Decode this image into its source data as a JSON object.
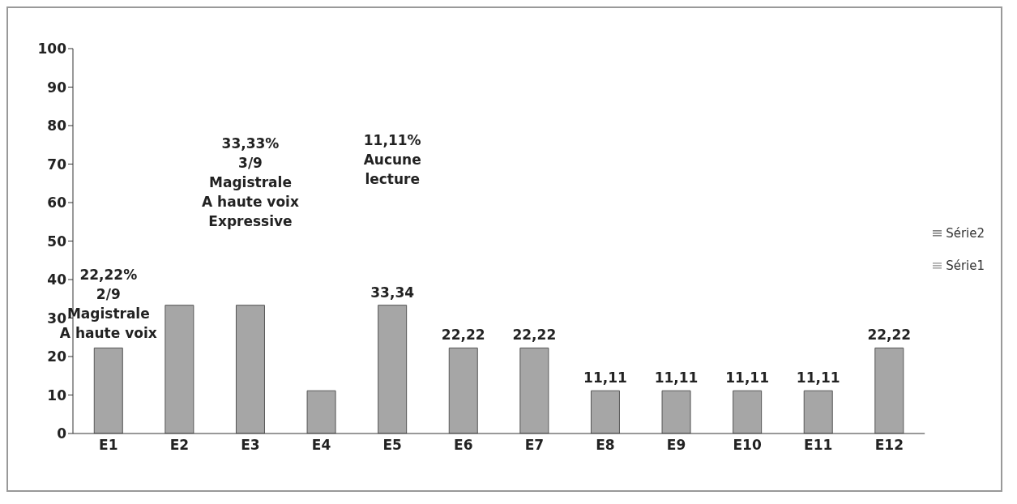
{
  "chart_data": {
    "type": "bar",
    "categories": [
      "E1",
      "E2",
      "E3",
      "E4",
      "E5",
      "E6",
      "E7",
      "E8",
      "E9",
      "E10",
      "E11",
      "E12"
    ],
    "series": [
      {
        "name": "Série1",
        "color": "#a6a6a6",
        "values": [
          22.22,
          33.33,
          33.33,
          11.11,
          33.34,
          22.22,
          22.22,
          11.11,
          11.11,
          11.11,
          11.11,
          22.22
        ],
        "value_labels": [
          null,
          null,
          null,
          null,
          "33,34",
          "22,22",
          "22,22",
          "11,11",
          "11,11",
          "11,11",
          "11,11",
          "22,22"
        ]
      },
      {
        "name": "Série2",
        "color": "#808080",
        "values": [
          null,
          null,
          null,
          null,
          null,
          null,
          null,
          null,
          null,
          null,
          null,
          null
        ]
      }
    ],
    "stacked": true,
    "ylim": [
      0,
      100
    ],
    "yticks": [
      0,
      10,
      20,
      30,
      40,
      50,
      60,
      70,
      80,
      90,
      100
    ],
    "grid": false,
    "legend": "right",
    "annotations": [
      "22,22%\n2/9\nMagistrale\nA haute voix",
      "33,33%\n3/9\nMagistrale\nA haute voix\nExpressive",
      "11,11%\nAucune\nlecture"
    ]
  }
}
